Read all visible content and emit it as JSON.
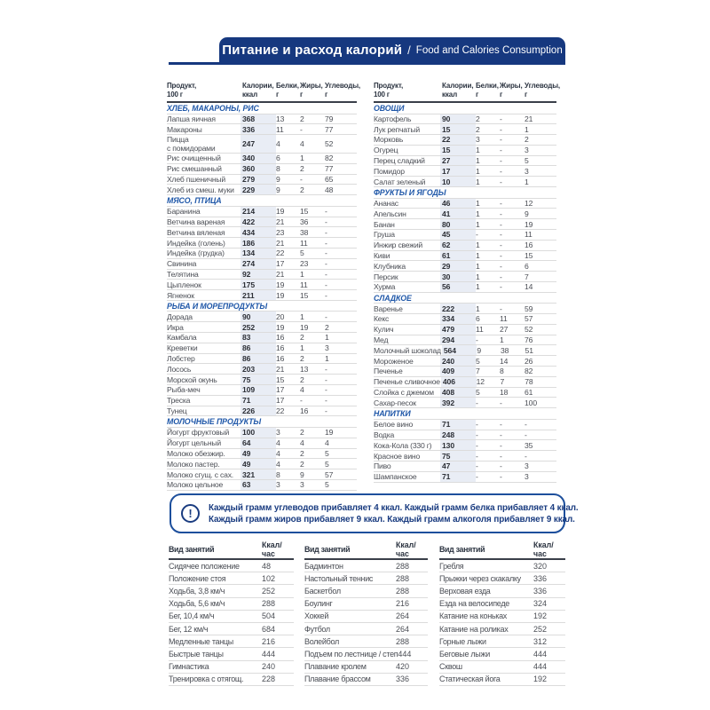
{
  "colors": {
    "banner_bg": "#16387f",
    "section_title": "#1f57a8",
    "note_text": "#1a3c80",
    "calorie_band": "#e9edf5"
  },
  "header": {
    "title_ru": "Питание и расход калорий",
    "separator": "/",
    "title_en": "Food and Calories Consumption"
  },
  "food_table_headers": [
    {
      "key": "product",
      "line1": "Продукт,",
      "line2": "100 г"
    },
    {
      "key": "calories",
      "line1": "Калории,",
      "line2": "ккал"
    },
    {
      "key": "protein",
      "line1": "Белки,",
      "line2": "г"
    },
    {
      "key": "fat",
      "line1": "Жиры,",
      "line2": "г"
    },
    {
      "key": "carbs",
      "line1": "Углеводы,",
      "line2": "г"
    }
  ],
  "food_columns": [
    {
      "sections": [
        {
          "title": "ХЛЕБ, МАКАРОНЫ, РИС",
          "rows": [
            [
              "Лапша яичная",
              "368",
              "13",
              "2",
              "79"
            ],
            [
              "Макароны",
              "336",
              "11",
              "-",
              "77"
            ],
            [
              "Пицца\nс помидорами",
              "247",
              "4",
              "4",
              "52"
            ],
            [
              "Рис очищенный",
              "340",
              "6",
              "1",
              "82"
            ],
            [
              "Рис смешанный",
              "360",
              "8",
              "2",
              "77"
            ],
            [
              "Хлеб пшеничный",
              "279",
              "9",
              "-",
              "65"
            ],
            [
              "Хлеб из смеш. муки",
              "229",
              "9",
              "2",
              "48"
            ]
          ]
        },
        {
          "title": "МЯСО, ПТИЦА",
          "rows": [
            [
              "Баранина",
              "214",
              "19",
              "15",
              "-"
            ],
            [
              "Ветчина вареная",
              "422",
              "21",
              "36",
              "-"
            ],
            [
              "Ветчина вяленая",
              "434",
              "23",
              "38",
              "-"
            ],
            [
              "Индейка (голень)",
              "186",
              "21",
              "11",
              "-"
            ],
            [
              "Индейка (грудка)",
              "134",
              "22",
              "5",
              "-"
            ],
            [
              "Свинина",
              "274",
              "17",
              "23",
              "-"
            ],
            [
              "Телятина",
              "92",
              "21",
              "1",
              "-"
            ],
            [
              "Цыпленок",
              "175",
              "19",
              "11",
              "-"
            ],
            [
              "Ягненок",
              "211",
              "19",
              "15",
              "-"
            ]
          ]
        },
        {
          "title": "РЫБА И МОРЕПРОДУКТЫ",
          "rows": [
            [
              "Дорада",
              "90",
              "20",
              "1",
              "-"
            ],
            [
              "Икра",
              "252",
              "19",
              "19",
              "2"
            ],
            [
              "Камбала",
              "83",
              "16",
              "2",
              "1"
            ],
            [
              "Креветки",
              "86",
              "16",
              "1",
              "3"
            ],
            [
              "Лобстер",
              "86",
              "16",
              "2",
              "1"
            ],
            [
              "Лосось",
              "203",
              "21",
              "13",
              "-"
            ],
            [
              "Морской окунь",
              "75",
              "15",
              "2",
              "-"
            ],
            [
              "Рыба-меч",
              "109",
              "17",
              "4",
              "-"
            ],
            [
              "Треска",
              "71",
              "17",
              "-",
              "-"
            ],
            [
              "Тунец",
              "226",
              "22",
              "16",
              "-"
            ]
          ]
        },
        {
          "title": "МОЛОЧНЫЕ ПРОДУКТЫ",
          "rows": [
            [
              "Йогурт фруктовый",
              "100",
              "3",
              "2",
              "19"
            ],
            [
              "Йогурт цельный",
              "64",
              "4",
              "4",
              "4"
            ],
            [
              "Молоко обезжир.",
              "49",
              "4",
              "2",
              "5"
            ],
            [
              "Молоко пастер.",
              "49",
              "4",
              "2",
              "5"
            ],
            [
              "Молоко сгущ. с сах.",
              "321",
              "8",
              "9",
              "57"
            ],
            [
              "Молоко цельное",
              "63",
              "3",
              "3",
              "5"
            ]
          ]
        }
      ]
    },
    {
      "sections": [
        {
          "title": "ОВОЩИ",
          "rows": [
            [
              "Картофель",
              "90",
              "2",
              "-",
              "21"
            ],
            [
              "Лук репчатый",
              "15",
              "2",
              "-",
              "1"
            ],
            [
              "Морковь",
              "22",
              "3",
              "-",
              "2"
            ],
            [
              "Огурец",
              "15",
              "1",
              "-",
              "3"
            ],
            [
              "Перец сладкий",
              "27",
              "1",
              "-",
              "5"
            ],
            [
              "Помидор",
              "17",
              "1",
              "-",
              "3"
            ],
            [
              "Салат зеленый",
              "10",
              "1",
              "-",
              "1"
            ]
          ]
        },
        {
          "title": "ФРУКТЫ И ЯГОДЫ",
          "rows": [
            [
              "Ананас",
              "46",
              "1",
              "-",
              "12"
            ],
            [
              "Апельсин",
              "41",
              "1",
              "-",
              "9"
            ],
            [
              "Банан",
              "80",
              "1",
              "-",
              "19"
            ],
            [
              "Груша",
              "45",
              "-",
              "-",
              "11"
            ],
            [
              "Инжир свежий",
              "62",
              "1",
              "-",
              "16"
            ],
            [
              "Киви",
              "61",
              "1",
              "-",
              "15"
            ],
            [
              "Клубника",
              "29",
              "1",
              "-",
              "6"
            ],
            [
              "Персик",
              "30",
              "1",
              "-",
              "7"
            ],
            [
              "Хурма",
              "56",
              "1",
              "-",
              "14"
            ]
          ]
        },
        {
          "title": "СЛАДКОЕ",
          "rows": [
            [
              "Варенье",
              "222",
              "1",
              "-",
              "59"
            ],
            [
              "Кекс",
              "334",
              "6",
              "11",
              "57"
            ],
            [
              "Кулич",
              "479",
              "11",
              "27",
              "52"
            ],
            [
              "Мед",
              "294",
              "-",
              "1",
              "76"
            ],
            [
              "Молочный шоколад",
              "564",
              "9",
              "38",
              "51"
            ],
            [
              "Мороженое",
              "240",
              "5",
              "14",
              "26"
            ],
            [
              "Печенье",
              "409",
              "7",
              "8",
              "82"
            ],
            [
              "Печенье сливочное",
              "406",
              "12",
              "7",
              "78"
            ],
            [
              "Слойка с джемом",
              "408",
              "5",
              "18",
              "61"
            ],
            [
              "Сахар-песок",
              "392",
              "-",
              "-",
              "100"
            ]
          ]
        },
        {
          "title": "НАПИТКИ",
          "rows": [
            [
              "Белое вино",
              "71",
              "-",
              "-",
              "-"
            ],
            [
              "Водка",
              "248",
              "-",
              "-",
              "-"
            ],
            [
              "Кока-Кола (330 г)",
              "130",
              "-",
              "-",
              "35"
            ],
            [
              "Красное вино",
              "75",
              "-",
              "-",
              "-"
            ],
            [
              "Пиво",
              "47",
              "-",
              "-",
              "3"
            ],
            [
              "Шампанское",
              "71",
              "-",
              "-",
              "3"
            ]
          ]
        }
      ]
    }
  ],
  "note": {
    "icon_glyph": "!",
    "line1": "Каждый грамм углеводов прибавляет 4 ккал. Каждый грамм белка прибавляет 4 ккал.",
    "line2": "Каждый грамм жиров прибавляет 9 ккал. Каждый грамм алкоголя прибавляет 9 ккал."
  },
  "activity_table_headers": {
    "activity": "Вид занятий",
    "rate": "Ккал/час"
  },
  "activity_columns": [
    {
      "rows": [
        [
          "Сидячее положение",
          "48"
        ],
        [
          "Положение стоя",
          "102"
        ],
        [
          "Ходьба, 3,8 км/ч",
          "252"
        ],
        [
          "Ходьба, 5,6 км/ч",
          "288"
        ],
        [
          "Бег, 10,4 км/ч",
          "504"
        ],
        [
          "Бег, 12 км/ч",
          "684"
        ],
        [
          "Медленные танцы",
          "216"
        ],
        [
          "Быстрые танцы",
          "444"
        ],
        [
          "Гимнастика",
          "240"
        ],
        [
          "Тренировка с отягощ.",
          "228"
        ]
      ]
    },
    {
      "rows": [
        [
          "Бадминтон",
          "288"
        ],
        [
          "Настольный теннис",
          "288"
        ],
        [
          "Баскетбол",
          "288"
        ],
        [
          "Боулинг",
          "216"
        ],
        [
          "Хоккей",
          "264"
        ],
        [
          "Футбол",
          "264"
        ],
        [
          "Волейбол",
          "288"
        ],
        [
          "Подъем по лестнице / степ",
          "444"
        ],
        [
          "Плавание кролем",
          "420"
        ],
        [
          "Плавание брассом",
          "336"
        ]
      ]
    },
    {
      "rows": [
        [
          "Гребля",
          "320"
        ],
        [
          "Прыжки через скакалку",
          "336"
        ],
        [
          "Верховая езда",
          "336"
        ],
        [
          "Езда на велосипеде",
          "324"
        ],
        [
          "Катание на коньках",
          "192"
        ],
        [
          "Катание на роликах",
          "252"
        ],
        [
          "Горные лыжи",
          "312"
        ],
        [
          "Беговые лыжи",
          "444"
        ],
        [
          "Сквош",
          "444"
        ],
        [
          "Статическая йога",
          "192"
        ]
      ]
    }
  ]
}
